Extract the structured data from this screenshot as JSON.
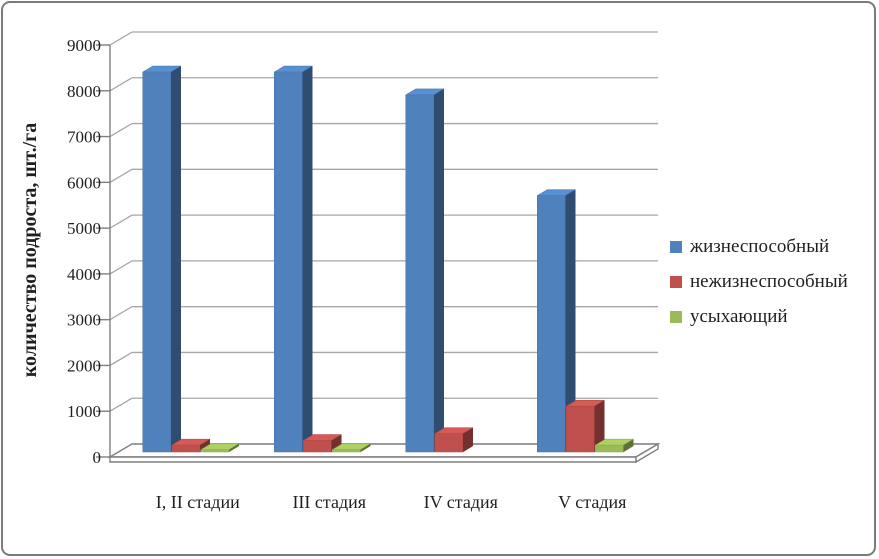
{
  "chart_data": {
    "type": "bar",
    "style": "3d-clustered-column",
    "title": "",
    "xlabel": "",
    "ylabel": "количество подроста, шт./га",
    "categories": [
      "I, II стадии",
      "III стадия",
      "IV стадия",
      "V стадия"
    ],
    "series": [
      {
        "name": "жизнеспособный",
        "color": "#4f81bd",
        "values": [
          8300,
          8300,
          7800,
          5600
        ]
      },
      {
        "name": "нежизнеспособный",
        "color": "#c0504d",
        "values": [
          150,
          250,
          400,
          1000
        ]
      },
      {
        "name": "усыхающий",
        "color": "#9bbb59",
        "values": [
          50,
          50,
          0,
          150
        ]
      }
    ],
    "y_axis": {
      "min": 0,
      "max": 9000,
      "step": 1000,
      "tick_labels": [
        "0",
        "1000",
        "2000",
        "3000",
        "4000",
        "5000",
        "6000",
        "7000",
        "8000",
        "9000"
      ]
    },
    "grid": true,
    "legend_position": "right",
    "grid_color": "#a6a6a6",
    "axis_color": "#7f7f7f",
    "text_color": "#1f1f1f",
    "background": "#ffffff"
  }
}
